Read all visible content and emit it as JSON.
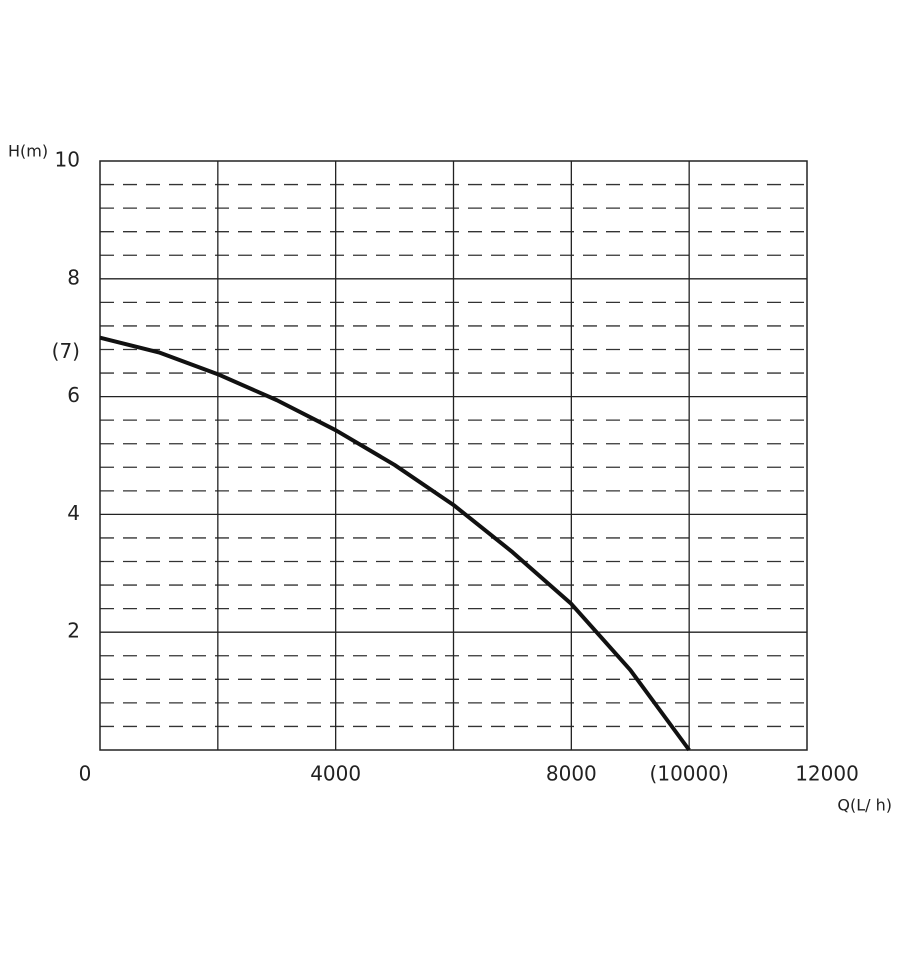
{
  "chart_data": {
    "type": "line",
    "y_label": "H(m)",
    "x_label": "Q(L/ h)",
    "x": [
      0,
      1000,
      2000,
      3000,
      4000,
      5000,
      6000,
      7000,
      8000,
      9000,
      10000
    ],
    "values": [
      7.0,
      6.75,
      6.38,
      5.94,
      5.43,
      4.84,
      4.16,
      3.36,
      2.48,
      1.36,
      0
    ],
    "color": "#111111",
    "xlim": [
      0,
      12000
    ],
    "ylim": [
      0,
      10
    ],
    "xticks": [
      0,
      4000,
      8000,
      {
        "value": 10000,
        "label": "(10000)"
      },
      12000
    ],
    "yticks": [
      10,
      8,
      {
        "value": 7,
        "label": "(7)"
      },
      6,
      4,
      2
    ],
    "xgrid": [
      2000,
      4000,
      6000,
      8000,
      10000
    ],
    "ygrid": [
      2,
      4,
      6,
      8
    ],
    "yminor_step": 0.4,
    "grid": true
  }
}
